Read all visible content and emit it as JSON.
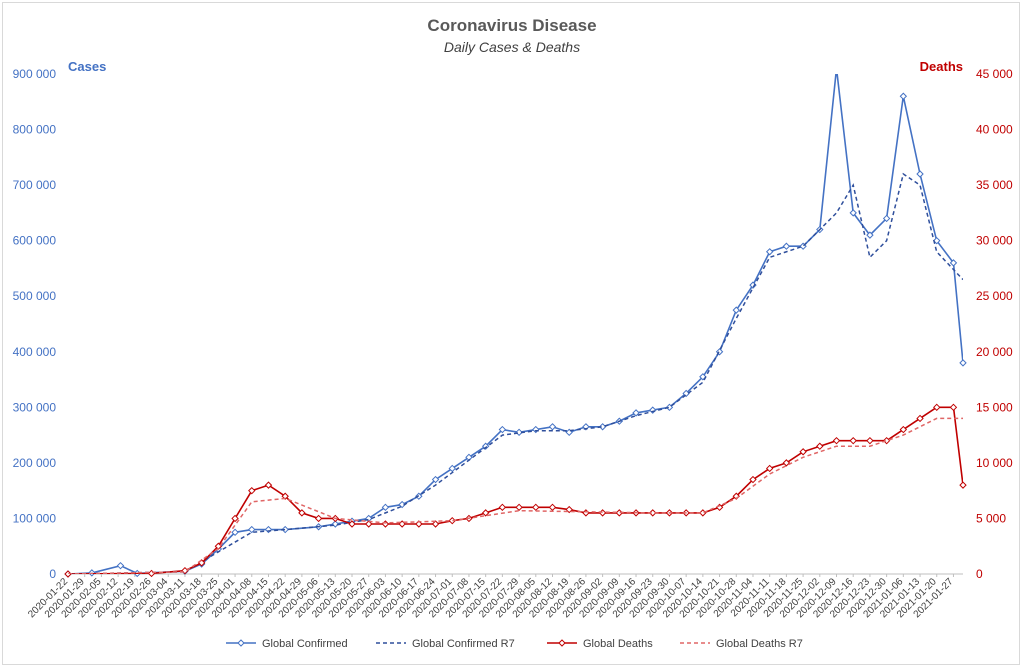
{
  "chart_data": {
    "type": "line",
    "title": "Coronavirus Disease",
    "subtitle": "Daily Cases & Deaths",
    "ylabel_left": "Cases",
    "ylabel_right": "Deaths",
    "ylim_left": [
      0,
      900000
    ],
    "ylim_right": [
      0,
      45000
    ],
    "yticks_left": [
      "0",
      "100 000",
      "200 000",
      "300 000",
      "400 000",
      "500 000",
      "600 000",
      "700 000",
      "800 000",
      "900 000"
    ],
    "yticks_right": [
      "0",
      "5 000",
      "10 000",
      "15 000",
      "20 000",
      "25 000",
      "30 000",
      "35 000",
      "40 000",
      "45 000"
    ],
    "x_start": "2020-01-22",
    "x_end": "2021-01-31",
    "xticks": [
      "2020-01-22",
      "2020-01-29",
      "2020-02-05",
      "2020-02-12",
      "2020-02-19",
      "2020-02-26",
      "2020-03-04",
      "2020-03-11",
      "2020-03-18",
      "2020-03-25",
      "2020-04-01",
      "2020-04-08",
      "2020-04-15",
      "2020-04-22",
      "2020-04-29",
      "2020-05-06",
      "2020-05-13",
      "2020-05-20",
      "2020-05-27",
      "2020-06-03",
      "2020-06-10",
      "2020-06-17",
      "2020-06-24",
      "2020-07-01",
      "2020-07-08",
      "2020-07-15",
      "2020-07-22",
      "2020-07-29",
      "2020-08-05",
      "2020-08-12",
      "2020-08-19",
      "2020-08-26",
      "2020-09-02",
      "2020-09-09",
      "2020-09-16",
      "2020-09-23",
      "2020-09-30",
      "2020-10-07",
      "2020-10-14",
      "2020-10-21",
      "2020-10-28",
      "2020-11-04",
      "2020-11-11",
      "2020-11-18",
      "2020-11-25",
      "2020-12-02",
      "2020-12-09",
      "2020-12-16",
      "2020-12-23",
      "2020-12-30",
      "2021-01-06",
      "2021-01-13",
      "2021-01-20",
      "2021-01-27"
    ],
    "grid": false,
    "legend_position": "bottom",
    "series": [
      {
        "name": "Global Confirmed",
        "axis": "left",
        "style": "solid-diamond",
        "color": "#4472c4",
        "points": [
          [
            "2020-01-22",
            0
          ],
          [
            "2020-02-01",
            2000
          ],
          [
            "2020-02-13",
            15000
          ],
          [
            "2020-02-20",
            1000
          ],
          [
            "2020-03-11",
            5000
          ],
          [
            "2020-03-18",
            18000
          ],
          [
            "2020-03-25",
            45000
          ],
          [
            "2020-04-01",
            75000
          ],
          [
            "2020-04-08",
            80000
          ],
          [
            "2020-04-15",
            80000
          ],
          [
            "2020-04-22",
            80000
          ],
          [
            "2020-05-06",
            85000
          ],
          [
            "2020-05-13",
            90000
          ],
          [
            "2020-05-20",
            95000
          ],
          [
            "2020-05-27",
            100000
          ],
          [
            "2020-06-03",
            120000
          ],
          [
            "2020-06-10",
            125000
          ],
          [
            "2020-06-17",
            140000
          ],
          [
            "2020-06-24",
            170000
          ],
          [
            "2020-07-01",
            190000
          ],
          [
            "2020-07-08",
            210000
          ],
          [
            "2020-07-15",
            230000
          ],
          [
            "2020-07-22",
            260000
          ],
          [
            "2020-07-29",
            255000
          ],
          [
            "2020-08-05",
            260000
          ],
          [
            "2020-08-12",
            265000
          ],
          [
            "2020-08-19",
            255000
          ],
          [
            "2020-08-26",
            265000
          ],
          [
            "2020-09-02",
            265000
          ],
          [
            "2020-09-09",
            275000
          ],
          [
            "2020-09-16",
            290000
          ],
          [
            "2020-09-23",
            295000
          ],
          [
            "2020-09-30",
            300000
          ],
          [
            "2020-10-07",
            325000
          ],
          [
            "2020-10-14",
            355000
          ],
          [
            "2020-10-21",
            400000
          ],
          [
            "2020-10-28",
            475000
          ],
          [
            "2020-11-04",
            520000
          ],
          [
            "2020-11-11",
            580000
          ],
          [
            "2020-11-18",
            590000
          ],
          [
            "2020-11-25",
            590000
          ],
          [
            "2020-12-02",
            620000
          ],
          [
            "2020-12-09",
            910000
          ],
          [
            "2020-12-16",
            650000
          ],
          [
            "2020-12-23",
            610000
          ],
          [
            "2020-12-30",
            640000
          ],
          [
            "2021-01-06",
            860000
          ],
          [
            "2021-01-13",
            720000
          ],
          [
            "2021-01-20",
            600000
          ],
          [
            "2021-01-27",
            560000
          ],
          [
            "2021-01-31",
            380000
          ]
        ]
      },
      {
        "name": "Global Confirmed R7",
        "axis": "left",
        "style": "dashed",
        "color": "#2f4f9c",
        "points": [
          [
            "2020-01-22",
            0
          ],
          [
            "2020-03-11",
            4000
          ],
          [
            "2020-03-25",
            40000
          ],
          [
            "2020-04-08",
            75000
          ],
          [
            "2020-04-22",
            80000
          ],
          [
            "2020-05-13",
            88000
          ],
          [
            "2020-05-27",
            98000
          ],
          [
            "2020-06-10",
            122000
          ],
          [
            "2020-06-24",
            160000
          ],
          [
            "2020-07-08",
            205000
          ],
          [
            "2020-07-22",
            250000
          ],
          [
            "2020-08-05",
            258000
          ],
          [
            "2020-08-19",
            258000
          ],
          [
            "2020-09-02",
            265000
          ],
          [
            "2020-09-16",
            285000
          ],
          [
            "2020-09-30",
            300000
          ],
          [
            "2020-10-14",
            345000
          ],
          [
            "2020-10-28",
            460000
          ],
          [
            "2020-11-11",
            570000
          ],
          [
            "2020-11-25",
            590000
          ],
          [
            "2020-12-09",
            650000
          ],
          [
            "2020-12-16",
            700000
          ],
          [
            "2020-12-23",
            570000
          ],
          [
            "2020-12-30",
            600000
          ],
          [
            "2021-01-06",
            720000
          ],
          [
            "2021-01-13",
            700000
          ],
          [
            "2021-01-20",
            580000
          ],
          [
            "2021-01-31",
            530000
          ]
        ]
      },
      {
        "name": "Global Deaths",
        "axis": "right",
        "style": "solid-diamond",
        "color": "#c00000",
        "points": [
          [
            "2020-01-22",
            0
          ],
          [
            "2020-02-26",
            50
          ],
          [
            "2020-03-11",
            300
          ],
          [
            "2020-03-18",
            1000
          ],
          [
            "2020-03-25",
            2500
          ],
          [
            "2020-04-01",
            5000
          ],
          [
            "2020-04-08",
            7500
          ],
          [
            "2020-04-15",
            8000
          ],
          [
            "2020-04-22",
            7000
          ],
          [
            "2020-04-29",
            5500
          ],
          [
            "2020-05-06",
            5000
          ],
          [
            "2020-05-13",
            5000
          ],
          [
            "2020-05-20",
            4500
          ],
          [
            "2020-05-27",
            4500
          ],
          [
            "2020-06-03",
            4500
          ],
          [
            "2020-06-10",
            4500
          ],
          [
            "2020-06-17",
            4500
          ],
          [
            "2020-06-24",
            4500
          ],
          [
            "2020-07-01",
            4800
          ],
          [
            "2020-07-08",
            5000
          ],
          [
            "2020-07-15",
            5500
          ],
          [
            "2020-07-22",
            6000
          ],
          [
            "2020-07-29",
            6000
          ],
          [
            "2020-08-05",
            6000
          ],
          [
            "2020-08-12",
            6000
          ],
          [
            "2020-08-19",
            5800
          ],
          [
            "2020-08-26",
            5500
          ],
          [
            "2020-09-02",
            5500
          ],
          [
            "2020-09-09",
            5500
          ],
          [
            "2020-09-16",
            5500
          ],
          [
            "2020-09-23",
            5500
          ],
          [
            "2020-09-30",
            5500
          ],
          [
            "2020-10-07",
            5500
          ],
          [
            "2020-10-14",
            5500
          ],
          [
            "2020-10-21",
            6000
          ],
          [
            "2020-10-28",
            7000
          ],
          [
            "2020-11-04",
            8500
          ],
          [
            "2020-11-11",
            9500
          ],
          [
            "2020-11-18",
            10000
          ],
          [
            "2020-11-25",
            11000
          ],
          [
            "2020-12-02",
            11500
          ],
          [
            "2020-12-09",
            12000
          ],
          [
            "2020-12-16",
            12000
          ],
          [
            "2020-12-23",
            12000
          ],
          [
            "2020-12-30",
            12000
          ],
          [
            "2021-01-06",
            13000
          ],
          [
            "2021-01-13",
            14000
          ],
          [
            "2021-01-20",
            15000
          ],
          [
            "2021-01-27",
            15000
          ],
          [
            "2021-01-31",
            8000
          ]
        ]
      },
      {
        "name": "Global Deaths R7",
        "axis": "right",
        "style": "dashed",
        "color": "#e06666",
        "points": [
          [
            "2020-01-22",
            0
          ],
          [
            "2020-03-11",
            200
          ],
          [
            "2020-03-25",
            2300
          ],
          [
            "2020-04-08",
            6500
          ],
          [
            "2020-04-22",
            6800
          ],
          [
            "2020-05-13",
            5000
          ],
          [
            "2020-06-03",
            4600
          ],
          [
            "2020-07-01",
            4800
          ],
          [
            "2020-07-29",
            5700
          ],
          [
            "2020-08-26",
            5600
          ],
          [
            "2020-09-23",
            5500
          ],
          [
            "2020-10-14",
            5500
          ],
          [
            "2020-10-28",
            6800
          ],
          [
            "2020-11-11",
            9000
          ],
          [
            "2020-11-25",
            10500
          ],
          [
            "2020-12-09",
            11500
          ],
          [
            "2020-12-23",
            11500
          ],
          [
            "2021-01-06",
            12500
          ],
          [
            "2021-01-20",
            14000
          ],
          [
            "2021-01-31",
            14000
          ]
        ]
      }
    ]
  }
}
